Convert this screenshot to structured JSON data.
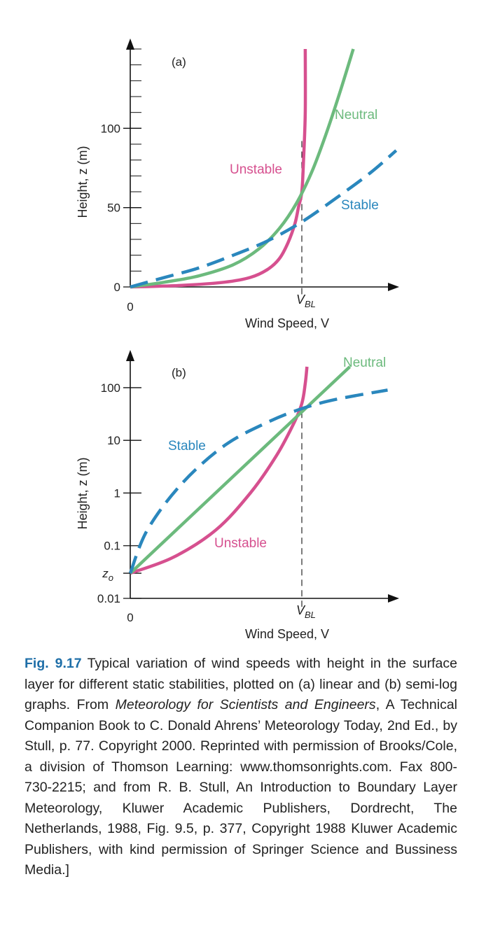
{
  "chart_data": [
    {
      "panel_label": "(a)",
      "type": "line",
      "scale": "linear",
      "xlabel": "Wind Speed, V",
      "ylabel": "Height, z (m)",
      "x_tick_labels": [
        "0"
      ],
      "x_marker": {
        "label": "V",
        "subscript": "BL",
        "value": 1.0
      },
      "y_ticks": [
        0,
        50,
        100
      ],
      "y_tick_labels": [
        "0",
        "50",
        "100"
      ],
      "ylim": [
        0,
        150
      ],
      "xlim": [
        0,
        1.55
      ],
      "grid": false,
      "series": [
        {
          "name": "Unstable",
          "color": "#d6508f",
          "dash": "solid",
          "x": [
            0,
            0.3,
            0.55,
            0.7,
            0.8,
            0.87,
            0.92,
            0.96,
            0.98,
            1.0,
            1.01,
            1.02,
            1.02
          ],
          "y": [
            0,
            1,
            3,
            6,
            11,
            18,
            28,
            40,
            50,
            60,
            80,
            110,
            150
          ]
        },
        {
          "name": "Neutral",
          "color": "#6cba7d",
          "dash": "solid",
          "x": [
            0,
            0.2,
            0.4,
            0.6,
            0.75,
            0.87,
            0.97,
            1.06,
            1.14,
            1.22,
            1.3
          ],
          "y": [
            0,
            3,
            7,
            14,
            24,
            37,
            53,
            73,
            96,
            122,
            150
          ]
        },
        {
          "name": "Stable",
          "color": "#2a87bd",
          "dash": "dashed",
          "x": [
            0,
            0.2,
            0.4,
            0.6,
            0.8,
            1.0,
            1.2,
            1.4,
            1.55
          ],
          "y": [
            0,
            6,
            12,
            20,
            29,
            41,
            56,
            72,
            86
          ]
        }
      ]
    },
    {
      "panel_label": "(b)",
      "type": "line",
      "scale": "semi-log",
      "xlabel": "Wind Speed, V",
      "ylabel": "Height, z (m)",
      "x_tick_labels": [
        "0"
      ],
      "x_marker": {
        "label": "V",
        "subscript": "BL",
        "value": 1.0
      },
      "y_ticks": [
        0.01,
        0.03,
        0.1,
        1,
        10,
        100
      ],
      "y_tick_labels": [
        "0.01",
        "z",
        "0.1",
        "1",
        "10",
        "100"
      ],
      "y_zo_subscript": "o",
      "ylim": [
        0.01,
        300
      ],
      "xlim": [
        0,
        1.55
      ],
      "grid": false,
      "series": [
        {
          "name": "Unstable",
          "color": "#d6508f",
          "dash": "solid",
          "x": [
            0,
            0.25,
            0.5,
            0.7,
            0.85,
            0.95,
            1.0,
            1.02,
            1.03
          ],
          "y": [
            0.03,
            0.06,
            0.2,
            1,
            5,
            20,
            50,
            120,
            250
          ]
        },
        {
          "name": "Neutral",
          "color": "#6cba7d",
          "dash": "solid",
          "x": [
            0,
            1.28
          ],
          "y": [
            0.03,
            250
          ]
        },
        {
          "name": "Stable",
          "color": "#2a87bd",
          "dash": "dashed",
          "x": [
            0,
            0.1,
            0.3,
            0.55,
            0.8,
            1.0,
            1.2,
            1.5
          ],
          "y": [
            0.03,
            0.2,
            1.5,
            8,
            22,
            40,
            60,
            90
          ]
        }
      ]
    }
  ],
  "caption": {
    "fig_num": "Fig. 9.17",
    "text_1": "Typical variation of wind speeds with height in the surface layer for different static stabilities, plotted on (a) linear and (b) semi-log graphs. From ",
    "book_title": "Meteorology for Scientists and Engineers",
    "text_2": ", A Technical Companion Book to C. Donald Ahrens’ Meteorology Today, 2nd Ed., by Stull, p. 77. Copyright 2000. Reprinted with permission of Brooks/Cole, a division of Thomson Learning: www.thomsonrights.com. Fax 800-730-2215; and from R. B. Stull, An Introduction to Boundary Layer Meteorology, Kluwer Academic Publishers, Dordrecht, The Netherlands, 1988, Fig. 9.5, p. 377, Copyright 1988 Kluwer Academic Publishers, with kind permission of Springer Science and Bussiness Media.]"
  }
}
